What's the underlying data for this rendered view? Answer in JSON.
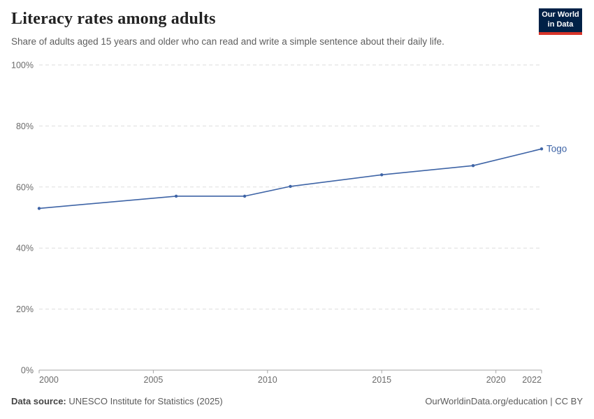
{
  "header": {
    "title": "Literacy rates among adults",
    "subtitle": "Share of adults aged 15 years and older who can read and write a simple sentence about their daily life.",
    "logo": {
      "line1": "Our World",
      "line2": "in Data",
      "bg_color": "#002147",
      "accent_color": "#d8352a"
    }
  },
  "chart_data": {
    "type": "line",
    "title": "Literacy rates among adults",
    "xlabel": "",
    "ylabel": "",
    "xlim": [
      2000,
      2022
    ],
    "ylim": [
      0,
      100
    ],
    "yticks": [
      0,
      20,
      40,
      60,
      80,
      100
    ],
    "ytick_suffix": "%",
    "xticks": [
      2000,
      2005,
      2010,
      2015,
      2020,
      2022
    ],
    "grid": "horizontal-dashed",
    "legend_position": "end-of-line-label",
    "series": [
      {
        "name": "Togo",
        "color": "#3e64a6",
        "x": [
          2000,
          2006,
          2009,
          2011,
          2015,
          2019,
          2022
        ],
        "values": [
          53,
          57,
          57,
          60.2,
          64,
          67,
          72.5
        ]
      }
    ]
  },
  "footer": {
    "source_label": "Data source:",
    "source_value": "UNESCO Institute for Statistics (2025)",
    "credit": "OurWorldinData.org/education | CC BY"
  }
}
